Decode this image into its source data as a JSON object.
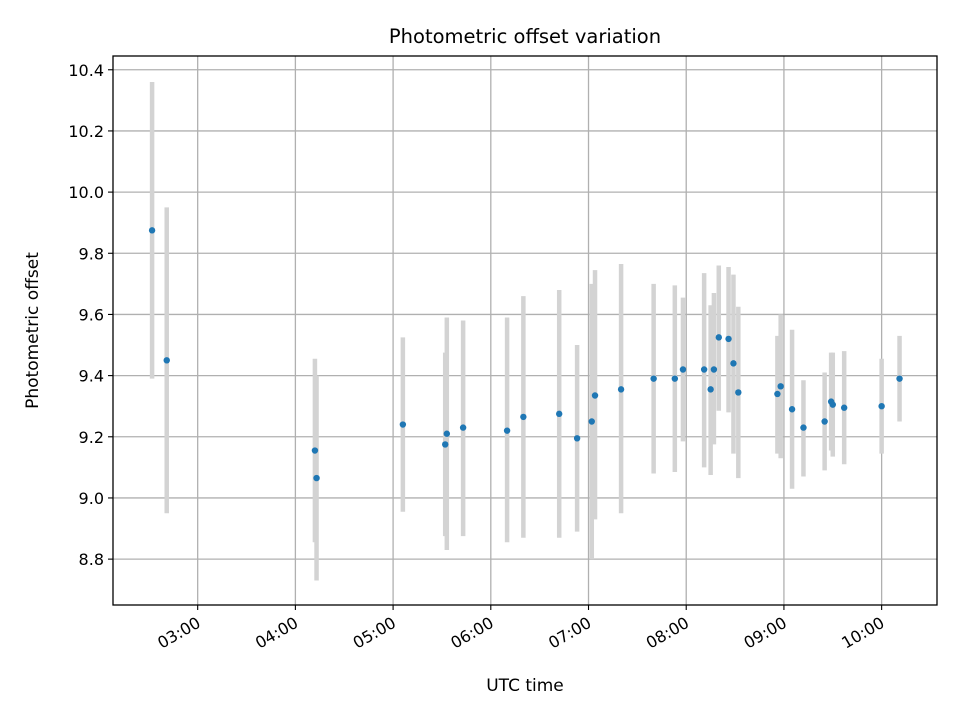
{
  "chart_data": {
    "type": "scatter",
    "title": "Photometric offset variation",
    "xlabel": "UTC time",
    "ylabel": "Photometric offset",
    "x_tick_labels": [
      "03:00",
      "04:00",
      "05:00",
      "06:00",
      "07:00",
      "08:00",
      "09:00",
      "10:00"
    ],
    "y_tick_labels": [
      "8.8",
      "9.0",
      "9.2",
      "9.4",
      "9.6",
      "9.8",
      "10.0",
      "10.2",
      "10.4"
    ],
    "x_ticks": [
      "03:00",
      "04:00",
      "05:00",
      "06:00",
      "07:00",
      "08:00",
      "09:00",
      "10:00"
    ],
    "y_ticks": [
      8.8,
      9.0,
      9.2,
      9.4,
      9.6,
      9.8,
      10.0,
      10.2,
      10.4
    ],
    "xlim": [
      "02:08",
      "10:34"
    ],
    "ylim": [
      8.65,
      10.445
    ],
    "grid": true,
    "marker_color": "#1f77b4",
    "errorbar_color": "#d3d3d3",
    "points": [
      {
        "x": "02:32",
        "y": 9.875,
        "low": 9.39,
        "high": 10.36
      },
      {
        "x": "02:41",
        "y": 9.45,
        "low": 8.95,
        "high": 9.95
      },
      {
        "x": "04:12",
        "y": 9.155,
        "low": 8.855,
        "high": 9.455
      },
      {
        "x": "04:13",
        "y": 9.065,
        "low": 8.73,
        "high": 9.4
      },
      {
        "x": "05:06",
        "y": 9.24,
        "low": 8.955,
        "high": 9.525
      },
      {
        "x": "05:32",
        "y": 9.175,
        "low": 8.875,
        "high": 9.475
      },
      {
        "x": "05:33",
        "y": 9.21,
        "low": 8.83,
        "high": 9.59
      },
      {
        "x": "05:43",
        "y": 9.23,
        "low": 8.875,
        "high": 9.58
      },
      {
        "x": "06:10",
        "y": 9.22,
        "low": 8.855,
        "high": 9.59
      },
      {
        "x": "06:20",
        "y": 9.265,
        "low": 8.87,
        "high": 9.66
      },
      {
        "x": "06:42",
        "y": 9.275,
        "low": 8.87,
        "high": 9.68
      },
      {
        "x": "06:53",
        "y": 9.195,
        "low": 8.89,
        "high": 9.5
      },
      {
        "x": "07:02",
        "y": 9.25,
        "low": 8.8,
        "high": 9.7
      },
      {
        "x": "07:04",
        "y": 9.335,
        "low": 8.93,
        "high": 9.745
      },
      {
        "x": "07:20",
        "y": 9.355,
        "low": 8.95,
        "high": 9.765
      },
      {
        "x": "07:40",
        "y": 9.39,
        "low": 9.08,
        "high": 9.7
      },
      {
        "x": "07:53",
        "y": 9.39,
        "low": 9.085,
        "high": 9.695
      },
      {
        "x": "07:58",
        "y": 9.42,
        "low": 9.185,
        "high": 9.655
      },
      {
        "x": "08:11",
        "y": 9.42,
        "low": 9.1,
        "high": 9.735
      },
      {
        "x": "08:15",
        "y": 9.355,
        "low": 9.075,
        "high": 9.63
      },
      {
        "x": "08:17",
        "y": 9.42,
        "low": 9.175,
        "high": 9.67
      },
      {
        "x": "08:20",
        "y": 9.525,
        "low": 9.285,
        "high": 9.76
      },
      {
        "x": "08:26",
        "y": 9.52,
        "low": 9.28,
        "high": 9.755
      },
      {
        "x": "08:29",
        "y": 9.44,
        "low": 9.145,
        "high": 9.73
      },
      {
        "x": "08:32",
        "y": 9.345,
        "low": 9.065,
        "high": 9.625
      },
      {
        "x": "08:56",
        "y": 9.34,
        "low": 9.145,
        "high": 9.53
      },
      {
        "x": "08:58",
        "y": 9.365,
        "low": 9.13,
        "high": 9.6
      },
      {
        "x": "09:05",
        "y": 9.29,
        "low": 9.03,
        "high": 9.55
      },
      {
        "x": "09:12",
        "y": 9.23,
        "low": 9.07,
        "high": 9.385
      },
      {
        "x": "09:25",
        "y": 9.25,
        "low": 9.09,
        "high": 9.41
      },
      {
        "x": "09:29",
        "y": 9.315,
        "low": 9.155,
        "high": 9.475
      },
      {
        "x": "09:30",
        "y": 9.305,
        "low": 9.135,
        "high": 9.475
      },
      {
        "x": "09:37",
        "y": 9.295,
        "low": 9.11,
        "high": 9.48
      },
      {
        "x": "10:00",
        "y": 9.3,
        "low": 9.145,
        "high": 9.455
      },
      {
        "x": "10:11",
        "y": 9.39,
        "low": 9.25,
        "high": 9.53
      }
    ]
  }
}
